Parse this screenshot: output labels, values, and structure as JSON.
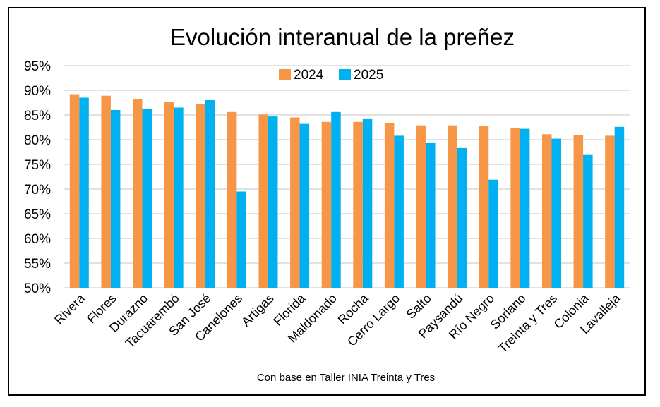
{
  "chart_data": {
    "type": "bar",
    "title": "Evolución interanual de la preñez",
    "footnote": "Con base en Taller INIA Treinta y Tres",
    "categories": [
      "Rivera",
      "Flores",
      "Durazno",
      "Tacuarembó",
      "San José",
      "Canelones",
      "Artigas",
      "Florida",
      "Maldonado",
      "Rocha",
      "Cerro Largo",
      "Salto",
      "Paysandú",
      "Río Negro",
      "Soriano",
      "Treinta y Tres",
      "Colonia",
      "Lavalleja"
    ],
    "series": [
      {
        "name": "2024",
        "color": "#F79646",
        "values": [
          89.2,
          88.9,
          88.2,
          87.6,
          87.2,
          85.6,
          85.1,
          84.5,
          83.6,
          83.6,
          83.3,
          82.9,
          82.9,
          82.8,
          82.4,
          81.1,
          80.9,
          80.8
        ]
      },
      {
        "name": "2025",
        "color": "#00B0F0",
        "values": [
          88.5,
          86.0,
          86.2,
          86.5,
          88.0,
          69.5,
          84.7,
          83.2,
          85.6,
          84.3,
          80.8,
          79.3,
          78.3,
          71.9,
          82.2,
          80.2,
          76.9,
          82.6
        ]
      }
    ],
    "ylim": [
      50,
      95
    ],
    "yticks": [
      "50%",
      "55%",
      "60%",
      "65%",
      "70%",
      "75%",
      "80%",
      "85%",
      "90%",
      "95%"
    ],
    "ytick_values": [
      50,
      55,
      60,
      65,
      70,
      75,
      80,
      85,
      90,
      95
    ],
    "grid": true,
    "legend_position": "top-center"
  }
}
